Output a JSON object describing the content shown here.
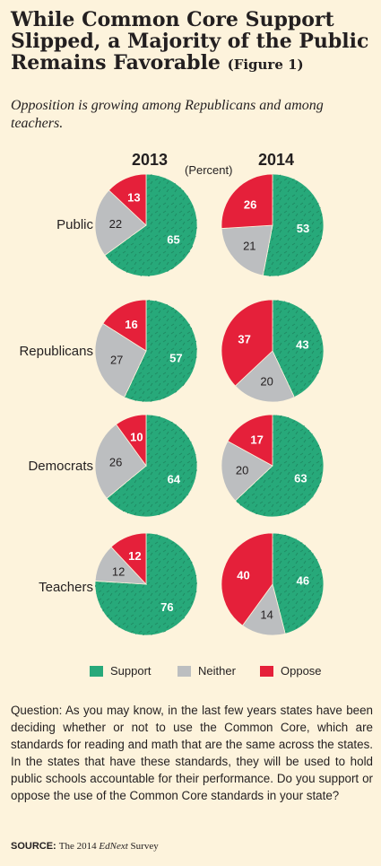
{
  "title": "While Common Core Support Slipped, a Majority of the Public Remains Favorable",
  "figure_label": "(Figure 1)",
  "subtitle": "Opposition is growing among Republicans and among teachers.",
  "unit": "(Percent)",
  "colors": {
    "support": "#27a97a",
    "neither": "#bcbec0",
    "oppose": "#e5203a",
    "background": "#fdf3dc"
  },
  "chart_data": {
    "type": "pie",
    "columns": [
      "2013",
      "2014"
    ],
    "categories": [
      "Support",
      "Neither",
      "Oppose"
    ],
    "groups": [
      {
        "label": "Public",
        "values": {
          "2013": [
            65,
            22,
            13
          ],
          "2014": [
            53,
            21,
            26
          ]
        }
      },
      {
        "label": "Republicans",
        "values": {
          "2013": [
            57,
            27,
            16
          ],
          "2014": [
            43,
            20,
            37
          ]
        }
      },
      {
        "label": "Democrats",
        "values": {
          "2013": [
            64,
            26,
            10
          ],
          "2014": [
            63,
            20,
            17
          ]
        }
      },
      {
        "label": "Teachers",
        "values": {
          "2013": [
            76,
            12,
            12
          ],
          "2014": [
            46,
            14,
            40
          ]
        }
      }
    ],
    "legend": [
      "Support",
      "Neither",
      "Oppose"
    ],
    "legend_position": "bottom"
  },
  "question": "Question: As you may know, in the last few years states have been deciding whether or not to use the Common Core, which are standards for reading and math that are the same across the states.  In the states that have these standards, they will be used to hold public schools accountable for their performance.  Do you support or oppose the use of the Common Core standards in your state?",
  "source": {
    "label": "SOURCE:",
    "text_before": "The 2014 ",
    "emphasis": "EdNext",
    "text_after": " Survey"
  }
}
